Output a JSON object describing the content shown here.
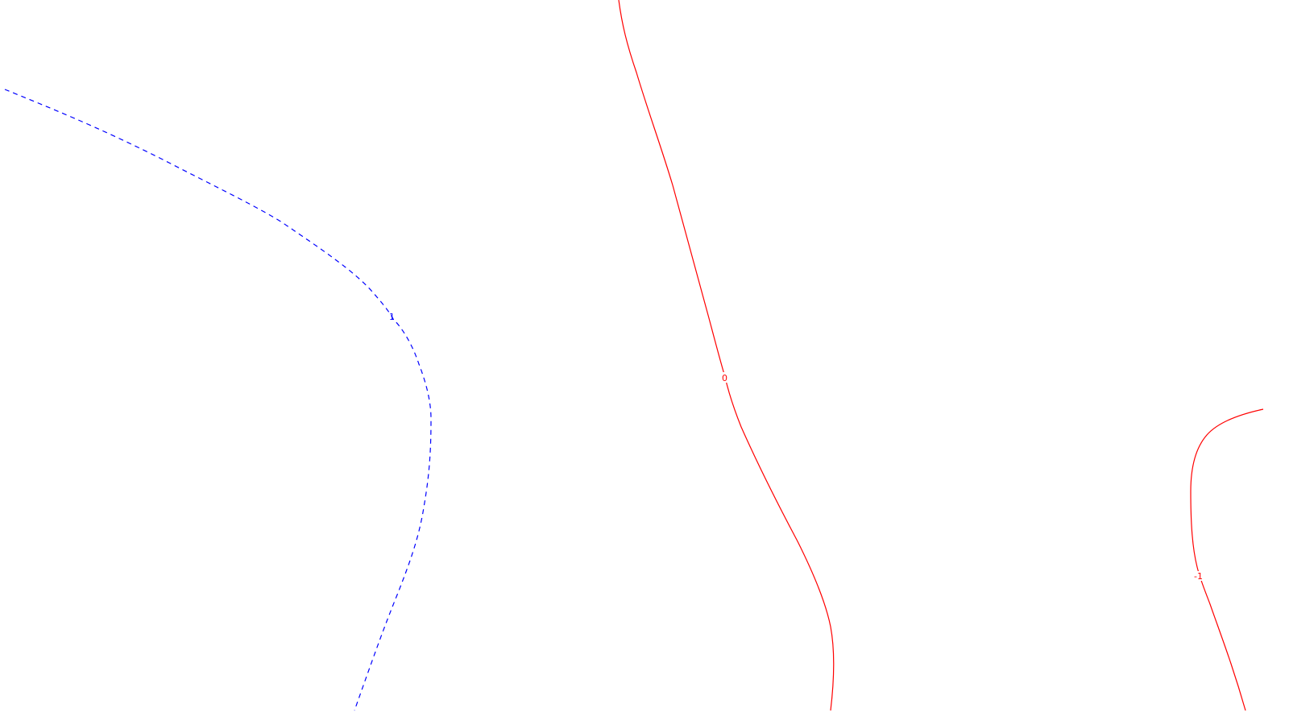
{
  "map": {
    "background": "#ffffff",
    "contours": [
      {
        "id": "contour-1",
        "level": 1,
        "label": "1",
        "color": "#0000ff",
        "style": "dashed"
      },
      {
        "id": "contour-0",
        "level": 0,
        "label": "0",
        "color": "#ff0000",
        "style": "solid"
      },
      {
        "id": "contour-neg1",
        "level": -1,
        "label": "-1",
        "color": "#ff0000",
        "style": "solid"
      }
    ]
  }
}
